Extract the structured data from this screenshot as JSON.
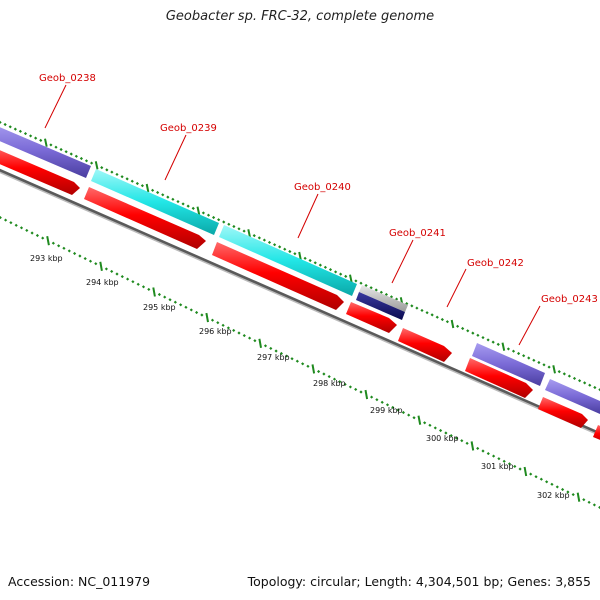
{
  "title": "Geobacter sp. FRC-32, complete genome",
  "footer": {
    "accession": "Accession: NC_011979",
    "topology": "Topology: circular; Length: 4,304,501 bp; Genes: 3,855"
  },
  "colors": {
    "cds": "#ff0000",
    "cds_dark": "#b00000",
    "blue_feature": "#8577dd",
    "cyan_feature": "#22eaea",
    "navy_feature": "#111166",
    "grey_feature": "#b8b8b8",
    "backbone": "#666666",
    "ticks": "#1f8a1f",
    "label": "#d40000"
  },
  "genes": [
    {
      "name": "Geob_0238"
    },
    {
      "name": "Geob_0239"
    },
    {
      "name": "Geob_0240"
    },
    {
      "name": "Geob_0241"
    },
    {
      "name": "Geob_0242"
    },
    {
      "name": "Geob_0243"
    }
  ],
  "kbp_labels": [
    "293 kbp",
    "294 kbp",
    "295 kbp",
    "296 kbp",
    "297 kbp",
    "298 kbp",
    "299 kbp",
    "300 kbp",
    "301 kbp",
    "302 kbp"
  ]
}
